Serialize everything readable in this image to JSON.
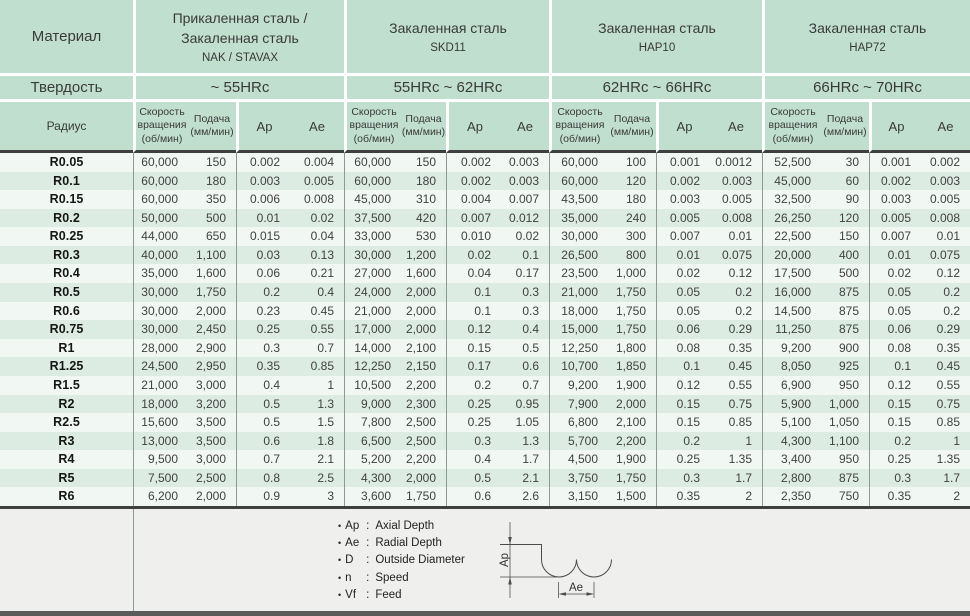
{
  "table": {
    "material_label": "Материал",
    "hardness_label": "Твердость",
    "radius_label": "Радиус",
    "col_headers": {
      "speed": "Скорость\nвращения\n(об/мин)",
      "feed": "Подача\n(мм/мин)",
      "ap": "Ap",
      "ae": "Ae"
    },
    "groups": [
      {
        "material_lines": [
          "Прикаленная сталь /",
          "Закаленная сталь"
        ],
        "grade": "NAK / STAVAX",
        "hardness": "~ 55HRc"
      },
      {
        "material_lines": [
          "Закаленная сталь"
        ],
        "grade": "SKD11",
        "hardness": "55HRc ~ 62HRc"
      },
      {
        "material_lines": [
          "Закаленная сталь"
        ],
        "grade": "HAP10",
        "hardness": "62HRc ~ 66HRc"
      },
      {
        "material_lines": [
          "Закаленная сталь"
        ],
        "grade": "HAP72",
        "hardness": "66HRc ~ 70HRc"
      }
    ],
    "rows": [
      {
        "radius": "R0.05",
        "values": [
          "60,000",
          "150",
          "0.002",
          "0.004",
          "60,000",
          "150",
          "0.002",
          "0.003",
          "60,000",
          "100",
          "0.001",
          "0.0012",
          "52,500",
          "30",
          "0.001",
          "0.002"
        ]
      },
      {
        "radius": "R0.1",
        "values": [
          "60,000",
          "180",
          "0.003",
          "0.005",
          "60,000",
          "180",
          "0.002",
          "0.003",
          "60,000",
          "120",
          "0.002",
          "0.003",
          "45,000",
          "60",
          "0.002",
          "0.003"
        ]
      },
      {
        "radius": "R0.15",
        "values": [
          "60,000",
          "350",
          "0.006",
          "0.008",
          "45,000",
          "310",
          "0.004",
          "0.007",
          "43,500",
          "180",
          "0.003",
          "0.005",
          "32,500",
          "90",
          "0.003",
          "0.005"
        ]
      },
      {
        "radius": "R0.2",
        "values": [
          "50,000",
          "500",
          "0.01",
          "0.02",
          "37,500",
          "420",
          "0.007",
          "0.012",
          "35,000",
          "240",
          "0.005",
          "0.008",
          "26,250",
          "120",
          "0.005",
          "0.008"
        ]
      },
      {
        "radius": "R0.25",
        "values": [
          "44,000",
          "650",
          "0.015",
          "0.04",
          "33,000",
          "530",
          "0.010",
          "0.02",
          "30,000",
          "300",
          "0.007",
          "0.01",
          "22,500",
          "150",
          "0.007",
          "0.01"
        ]
      },
      {
        "radius": "R0.3",
        "values": [
          "40,000",
          "1,100",
          "0.03",
          "0.13",
          "30,000",
          "1,200",
          "0.02",
          "0.1",
          "26,500",
          "800",
          "0.01",
          "0.075",
          "20,000",
          "400",
          "0.01",
          "0.075"
        ]
      },
      {
        "radius": "R0.4",
        "values": [
          "35,000",
          "1,600",
          "0.06",
          "0.21",
          "27,000",
          "1,600",
          "0.04",
          "0.17",
          "23,500",
          "1,000",
          "0.02",
          "0.12",
          "17,500",
          "500",
          "0.02",
          "0.12"
        ]
      },
      {
        "radius": "R0.5",
        "values": [
          "30,000",
          "1,750",
          "0.2",
          "0.4",
          "24,000",
          "2,000",
          "0.1",
          "0.3",
          "21,000",
          "1,750",
          "0.05",
          "0.2",
          "16,000",
          "875",
          "0.05",
          "0.2"
        ]
      },
      {
        "radius": "R0.6",
        "values": [
          "30,000",
          "2,000",
          "0.23",
          "0.45",
          "21,000",
          "2,000",
          "0.1",
          "0.3",
          "18,000",
          "1,750",
          "0.05",
          "0.2",
          "14,500",
          "875",
          "0.05",
          "0.2"
        ]
      },
      {
        "radius": "R0.75",
        "values": [
          "30,000",
          "2,450",
          "0.25",
          "0.55",
          "17,000",
          "2,000",
          "0.12",
          "0.4",
          "15,000",
          "1,750",
          "0.06",
          "0.29",
          "11,250",
          "875",
          "0.06",
          "0.29"
        ]
      },
      {
        "radius": "R1",
        "values": [
          "28,000",
          "2,900",
          "0.3",
          "0.7",
          "14,000",
          "2,100",
          "0.15",
          "0.5",
          "12,250",
          "1,800",
          "0.08",
          "0.35",
          "9,200",
          "900",
          "0.08",
          "0.35"
        ]
      },
      {
        "radius": "R1.25",
        "values": [
          "24,500",
          "2,950",
          "0.35",
          "0.85",
          "12,250",
          "2,150",
          "0.17",
          "0.6",
          "10,700",
          "1,850",
          "0.1",
          "0.45",
          "8,050",
          "925",
          "0.1",
          "0.45"
        ]
      },
      {
        "radius": "R1.5",
        "values": [
          "21,000",
          "3,000",
          "0.4",
          "1",
          "10,500",
          "2,200",
          "0.2",
          "0.7",
          "9,200",
          "1,900",
          "0.12",
          "0.55",
          "6,900",
          "950",
          "0.12",
          "0.55"
        ]
      },
      {
        "radius": "R2",
        "values": [
          "18,000",
          "3,200",
          "0.5",
          "1.3",
          "9,000",
          "2,300",
          "0.25",
          "0.95",
          "7,900",
          "2,000",
          "0.15",
          "0.75",
          "5,900",
          "1,000",
          "0.15",
          "0.75"
        ]
      },
      {
        "radius": "R2.5",
        "values": [
          "15,600",
          "3,500",
          "0.5",
          "1.5",
          "7,800",
          "2,500",
          "0.25",
          "1.05",
          "6,800",
          "2,100",
          "0.15",
          "0.85",
          "5,100",
          "1,050",
          "0.15",
          "0.85"
        ]
      },
      {
        "radius": "R3",
        "values": [
          "13,000",
          "3,500",
          "0.6",
          "1.8",
          "6,500",
          "2,500",
          "0.3",
          "1.3",
          "5,700",
          "2,200",
          "0.2",
          "1",
          "4,300",
          "1,100",
          "0.2",
          "1"
        ]
      },
      {
        "radius": "R4",
        "values": [
          "9,500",
          "3,000",
          "0.7",
          "2.1",
          "5,200",
          "2,200",
          "0.4",
          "1.7",
          "4,500",
          "1,900",
          "0.25",
          "1.35",
          "3,400",
          "950",
          "0.25",
          "1.35"
        ]
      },
      {
        "radius": "R5",
        "values": [
          "7,500",
          "2,500",
          "0.8",
          "2.5",
          "4,300",
          "2,000",
          "0.5",
          "2.1",
          "3,750",
          "1,750",
          "0.3",
          "1.7",
          "2,800",
          "875",
          "0.3",
          "1.7"
        ]
      },
      {
        "radius": "R6",
        "values": [
          "6,200",
          "2,000",
          "0.9",
          "3",
          "3,600",
          "1,750",
          "0.6",
          "2.6",
          "3,150",
          "1,500",
          "0.35",
          "2",
          "2,350",
          "750",
          "0.35",
          "2"
        ]
      }
    ]
  },
  "legend": {
    "bullet": "•",
    "separator": ":",
    "items": [
      {
        "term": "Ap",
        "definition": "Axial Depth"
      },
      {
        "term": "Ae",
        "definition": "Radial Depth"
      },
      {
        "term": "D",
        "definition": "Outside Diameter"
      },
      {
        "term": "n",
        "definition": "Speed"
      },
      {
        "term": "Vf",
        "definition": "Feed"
      }
    ]
  },
  "diagram": {
    "ap_label": "Ap",
    "ae_label": "Ae"
  },
  "colors": {
    "header_green": "#c1dfcf",
    "row_light": "#f1f7f3",
    "row_dark": "#dcece3",
    "footer_gray": "#efefed",
    "line_dark": "#3e4040",
    "bottom_bar": "#595b5b"
  }
}
